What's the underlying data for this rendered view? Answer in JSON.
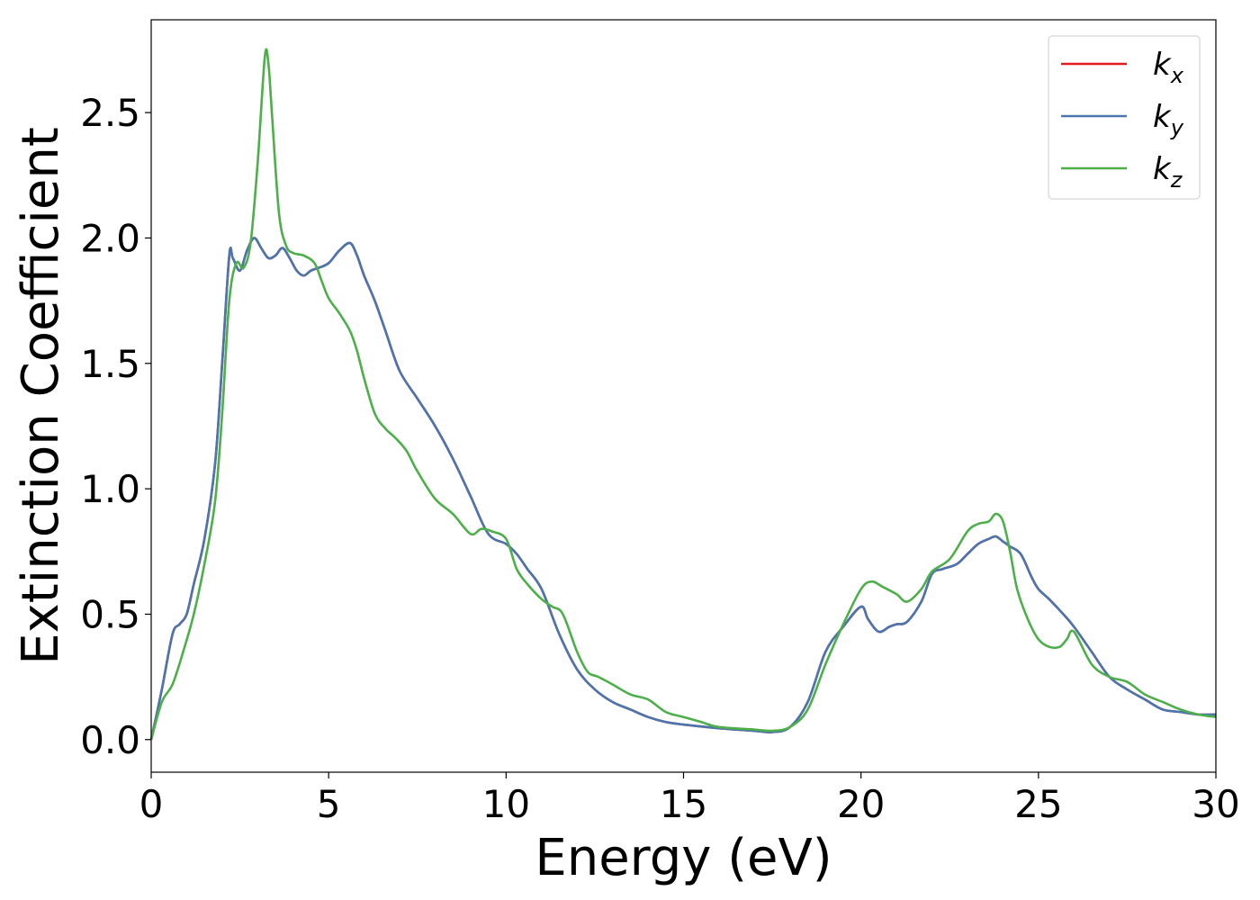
{
  "chart_data": {
    "type": "line",
    "xlabel": "Energy (eV)",
    "ylabel": "Extinction Coefficient",
    "xlim": [
      0,
      30
    ],
    "ylim": [
      -0.13,
      2.87
    ],
    "xticks": [
      0,
      5,
      10,
      15,
      20,
      25,
      30
    ],
    "yticks": [
      0.0,
      0.5,
      1.0,
      1.5,
      2.0,
      2.5
    ],
    "grid": false,
    "legend_position": "top-right",
    "series": [
      {
        "name": "k",
        "subscript": "x",
        "color": "#e41a1c",
        "x": [
          0,
          0.3,
          0.6,
          0.8,
          1.0,
          1.2,
          1.5,
          1.8,
          2.0,
          2.2,
          2.3,
          2.5,
          2.7,
          2.9,
          3.1,
          3.3,
          3.5,
          3.7,
          3.9,
          4.1,
          4.3,
          4.5,
          4.7,
          5.0,
          5.3,
          5.6,
          5.8,
          6.0,
          6.3,
          6.6,
          7.0,
          7.5,
          8.0,
          8.5,
          9.0,
          9.5,
          10.0,
          10.3,
          10.6,
          11.0,
          11.5,
          12.0,
          12.5,
          13.0,
          13.5,
          14.0,
          14.5,
          15.0,
          16.0,
          17.0,
          17.5,
          18.0,
          18.5,
          19.0,
          19.5,
          20.0,
          20.2,
          20.5,
          20.8,
          21.0,
          21.3,
          21.7,
          22.0,
          22.3,
          22.7,
          23.0,
          23.3,
          23.6,
          23.8,
          24.0,
          24.2,
          24.5,
          24.8,
          25.0,
          25.3,
          25.7,
          26.0,
          26.5,
          27.0,
          27.5,
          28.0,
          28.5,
          29.0,
          29.5,
          30.0
        ],
        "values": [
          0.0,
          0.2,
          0.42,
          0.46,
          0.5,
          0.62,
          0.8,
          1.1,
          1.5,
          1.93,
          1.92,
          1.87,
          1.95,
          2.0,
          1.96,
          1.92,
          1.93,
          1.96,
          1.92,
          1.87,
          1.85,
          1.87,
          1.88,
          1.9,
          1.95,
          1.98,
          1.93,
          1.85,
          1.75,
          1.63,
          1.47,
          1.36,
          1.25,
          1.12,
          0.97,
          0.82,
          0.78,
          0.74,
          0.68,
          0.6,
          0.42,
          0.28,
          0.2,
          0.15,
          0.12,
          0.09,
          0.07,
          0.06,
          0.045,
          0.035,
          0.03,
          0.05,
          0.15,
          0.35,
          0.45,
          0.53,
          0.48,
          0.43,
          0.45,
          0.46,
          0.47,
          0.55,
          0.66,
          0.68,
          0.7,
          0.74,
          0.78,
          0.8,
          0.81,
          0.79,
          0.77,
          0.74,
          0.65,
          0.6,
          0.56,
          0.5,
          0.45,
          0.35,
          0.25,
          0.2,
          0.16,
          0.12,
          0.11,
          0.1,
          0.1
        ]
      },
      {
        "name": "k",
        "subscript": "y",
        "color": "#4a76b0",
        "x": [
          0,
          0.3,
          0.6,
          0.8,
          1.0,
          1.2,
          1.5,
          1.8,
          2.0,
          2.2,
          2.3,
          2.5,
          2.7,
          2.9,
          3.1,
          3.3,
          3.5,
          3.7,
          3.9,
          4.1,
          4.3,
          4.5,
          4.7,
          5.0,
          5.3,
          5.6,
          5.8,
          6.0,
          6.3,
          6.6,
          7.0,
          7.5,
          8.0,
          8.5,
          9.0,
          9.5,
          10.0,
          10.3,
          10.6,
          11.0,
          11.5,
          12.0,
          12.5,
          13.0,
          13.5,
          14.0,
          14.5,
          15.0,
          16.0,
          17.0,
          17.5,
          18.0,
          18.5,
          19.0,
          19.5,
          20.0,
          20.2,
          20.5,
          20.8,
          21.0,
          21.3,
          21.7,
          22.0,
          22.3,
          22.7,
          23.0,
          23.3,
          23.6,
          23.8,
          24.0,
          24.2,
          24.5,
          24.8,
          25.0,
          25.3,
          25.7,
          26.0,
          26.5,
          27.0,
          27.5,
          28.0,
          28.5,
          29.0,
          29.5,
          30.0
        ],
        "values": [
          0.0,
          0.2,
          0.42,
          0.46,
          0.5,
          0.62,
          0.8,
          1.1,
          1.5,
          1.93,
          1.92,
          1.87,
          1.95,
          2.0,
          1.96,
          1.92,
          1.93,
          1.96,
          1.92,
          1.87,
          1.85,
          1.87,
          1.88,
          1.9,
          1.95,
          1.98,
          1.93,
          1.85,
          1.75,
          1.63,
          1.47,
          1.36,
          1.25,
          1.12,
          0.97,
          0.82,
          0.78,
          0.74,
          0.68,
          0.6,
          0.42,
          0.28,
          0.2,
          0.15,
          0.12,
          0.09,
          0.07,
          0.06,
          0.045,
          0.035,
          0.03,
          0.05,
          0.15,
          0.35,
          0.45,
          0.53,
          0.48,
          0.43,
          0.45,
          0.46,
          0.47,
          0.55,
          0.66,
          0.68,
          0.7,
          0.74,
          0.78,
          0.8,
          0.81,
          0.79,
          0.77,
          0.74,
          0.65,
          0.6,
          0.56,
          0.5,
          0.45,
          0.35,
          0.25,
          0.2,
          0.16,
          0.12,
          0.11,
          0.1,
          0.1
        ]
      },
      {
        "name": "k",
        "subscript": "z",
        "color": "#4daf4a",
        "x": [
          0,
          0.3,
          0.6,
          0.9,
          1.2,
          1.5,
          1.8,
          2.0,
          2.2,
          2.4,
          2.6,
          2.8,
          3.0,
          3.2,
          3.3,
          3.4,
          3.6,
          3.8,
          4.0,
          4.3,
          4.6,
          4.8,
          5.0,
          5.3,
          5.6,
          5.8,
          6.0,
          6.3,
          6.6,
          6.9,
          7.2,
          7.5,
          8.0,
          8.5,
          9.0,
          9.3,
          9.6,
          10.0,
          10.3,
          10.6,
          11.0,
          11.3,
          11.6,
          12.0,
          12.3,
          12.6,
          13.0,
          13.5,
          14.0,
          14.5,
          15.0,
          15.5,
          16.0,
          17.0,
          17.5,
          18.0,
          18.5,
          19.0,
          19.5,
          20.0,
          20.3,
          20.6,
          21.0,
          21.3,
          21.7,
          22.0,
          22.5,
          23.0,
          23.3,
          23.6,
          23.8,
          24.0,
          24.2,
          24.4,
          24.7,
          25.0,
          25.3,
          25.6,
          25.8,
          26.0,
          26.5,
          27.0,
          27.5,
          28.0,
          28.5,
          29.0,
          29.5,
          30.0
        ],
        "values": [
          0.0,
          0.15,
          0.22,
          0.35,
          0.5,
          0.7,
          0.95,
          1.3,
          1.75,
          1.9,
          1.88,
          1.98,
          2.3,
          2.72,
          2.7,
          2.5,
          2.1,
          1.97,
          1.94,
          1.93,
          1.9,
          1.83,
          1.76,
          1.7,
          1.63,
          1.55,
          1.44,
          1.3,
          1.24,
          1.2,
          1.15,
          1.07,
          0.96,
          0.9,
          0.82,
          0.84,
          0.83,
          0.8,
          0.68,
          0.62,
          0.56,
          0.53,
          0.5,
          0.35,
          0.27,
          0.25,
          0.22,
          0.18,
          0.16,
          0.11,
          0.09,
          0.07,
          0.05,
          0.04,
          0.035,
          0.05,
          0.12,
          0.3,
          0.46,
          0.6,
          0.63,
          0.61,
          0.58,
          0.55,
          0.6,
          0.67,
          0.72,
          0.83,
          0.86,
          0.87,
          0.9,
          0.87,
          0.75,
          0.6,
          0.48,
          0.4,
          0.37,
          0.37,
          0.4,
          0.43,
          0.3,
          0.25,
          0.23,
          0.18,
          0.15,
          0.12,
          0.1,
          0.09
        ]
      }
    ]
  }
}
